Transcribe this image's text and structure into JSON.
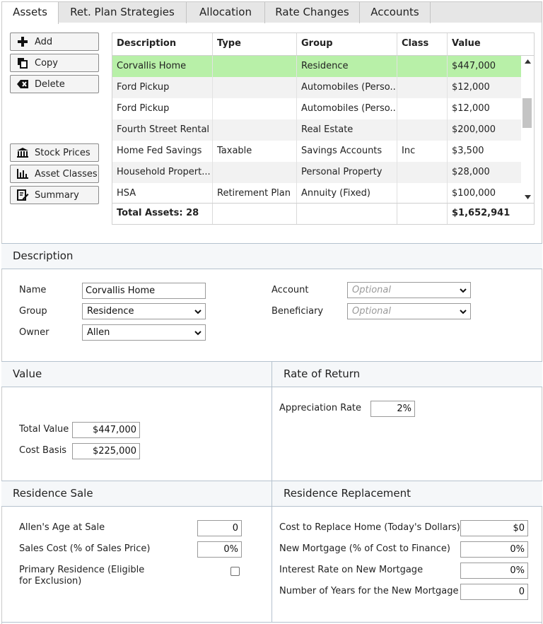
{
  "tabs": [
    {
      "label": "Assets",
      "active": true
    },
    {
      "label": "Ret. Plan Strategies",
      "active": false
    },
    {
      "label": "Allocation",
      "active": false
    },
    {
      "label": "Rate Changes",
      "active": false
    },
    {
      "label": "Accounts",
      "active": false
    }
  ],
  "actions": {
    "add": "Add",
    "copy": "Copy",
    "delete": "Delete",
    "stock_prices": "Stock Prices",
    "asset_classes": "Asset Classes",
    "summary": "Summary"
  },
  "table": {
    "columns": [
      "Description",
      "Type",
      "Group",
      "Class",
      "Value"
    ],
    "rows": [
      [
        "Corvallis Home",
        "",
        "Residence",
        "",
        "$447,000"
      ],
      [
        "Ford Pickup",
        "",
        "Automobiles (Perso...",
        "",
        "$12,000"
      ],
      [
        "Ford Pickup",
        "",
        "Automobiles (Perso...",
        "",
        "$12,000"
      ],
      [
        "Fourth Street Rental",
        "",
        "Real Estate",
        "",
        "$200,000"
      ],
      [
        "Home Fed Savings",
        "Taxable",
        "Savings Accounts",
        "Inc",
        "$3,500"
      ],
      [
        "Household Propert...",
        "",
        "Personal Property",
        "",
        "$28,000"
      ],
      [
        "HSA",
        "Retirement Plan",
        "Annuity (Fixed)",
        "",
        "$100,000"
      ]
    ],
    "selected_row": 0,
    "footer_label": "Total Assets: 28",
    "footer_total": "$1,652,941"
  },
  "description": {
    "heading": "Description",
    "name_label": "Name",
    "name_value": "Corvallis Home",
    "group_label": "Group",
    "group_value": "Residence",
    "owner_label": "Owner",
    "owner_value": "Allen",
    "account_label": "Account",
    "account_placeholder": "Optional",
    "beneficiary_label": "Beneficiary",
    "beneficiary_placeholder": "Optional"
  },
  "value": {
    "heading": "Value",
    "total_label": "Total Value",
    "total_value": "$447,000",
    "basis_label": "Cost Basis",
    "basis_value": "$225,000"
  },
  "rate": {
    "heading": "Rate of Return",
    "appreciation_label": "Appreciation Rate",
    "appreciation_value": "2%"
  },
  "sale": {
    "heading": "Residence Sale",
    "age_label": "Allen's Age at Sale",
    "age_value": "0",
    "cost_label": "Sales Cost (% of Sales Price)",
    "cost_value": "0%",
    "primary_label_1": "Primary Residence (Eligible",
    "primary_label_2": "for Exclusion)",
    "primary_checked": false
  },
  "replacement": {
    "heading": "Residence Replacement",
    "replace_label": "Cost to Replace Home (Today's Dollars)",
    "replace_value": "$0",
    "mortgage_label": "New Mortgage (% of Cost to Finance)",
    "mortgage_value": "0%",
    "interest_label": "Interest Rate on New Mortgage",
    "interest_value": "0%",
    "years_label": "Number of Years for the New Mortgage",
    "years_value": "0"
  },
  "colors": {
    "selected_row": "#b8f0a8",
    "section_border": "#b5c2ce",
    "section_bg": "#f5f7f9"
  }
}
